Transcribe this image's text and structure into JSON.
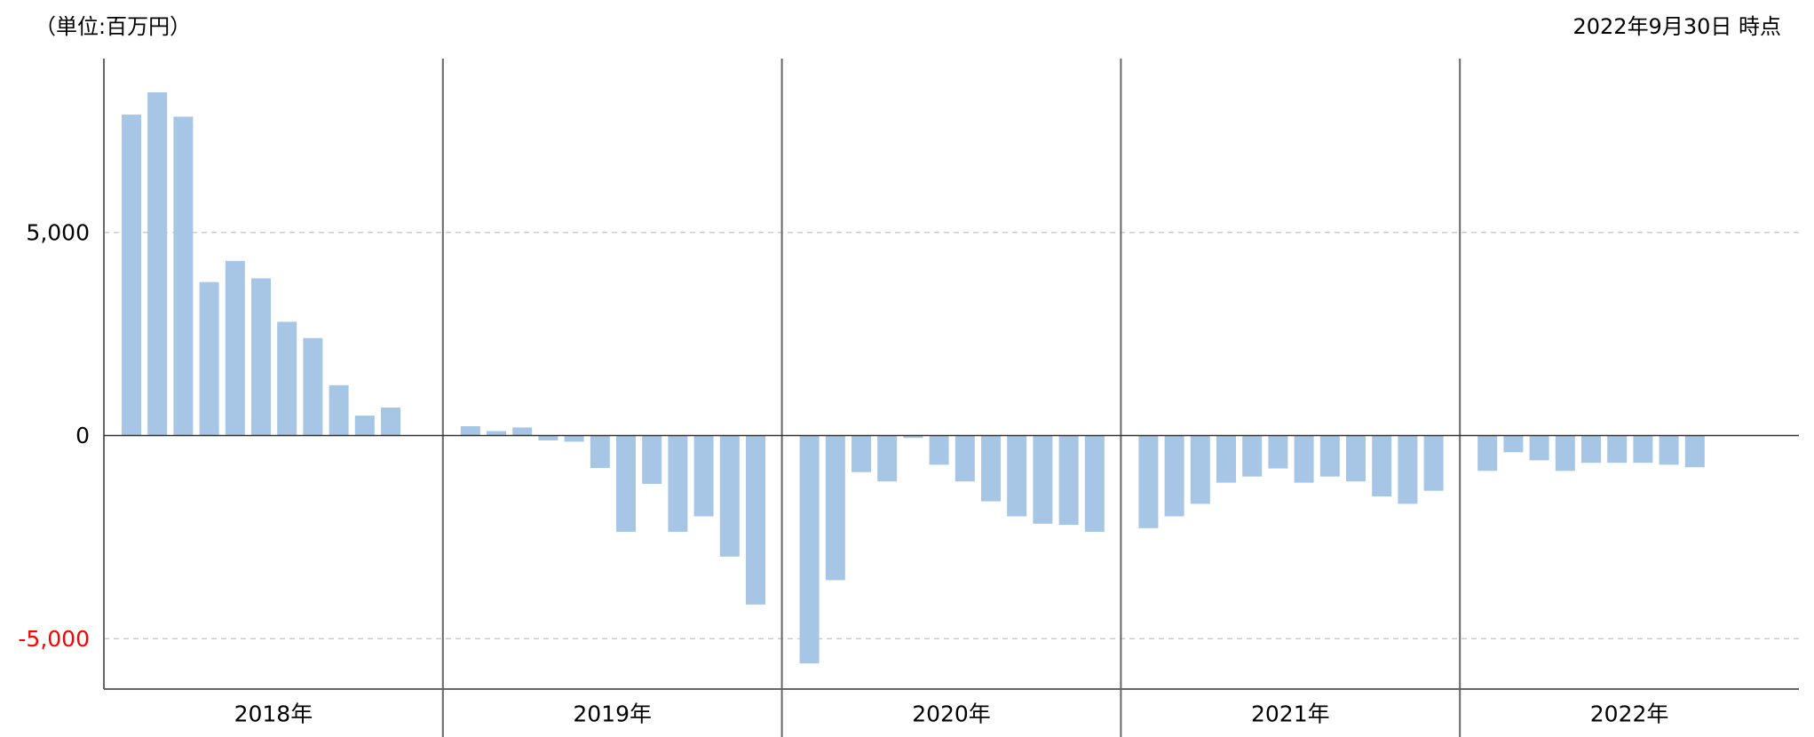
{
  "chart_data": {
    "type": "bar",
    "unit_note": "（単位:百万円）",
    "as_of": "2022年9月30日 時点",
    "ylim": [
      -6240,
      9280
    ],
    "yticks": [
      5000,
      0,
      -5000
    ],
    "ytick_labels": [
      "5,000",
      "0",
      "-5,000"
    ],
    "grid": true,
    "groups": [
      {
        "label": "2018年",
        "values": [
          7900,
          8450,
          7850,
          3780,
          4300,
          3870,
          2800,
          2400,
          1240,
          490,
          690
        ]
      },
      {
        "label": "2019年",
        "values": [
          230,
          110,
          200,
          -120,
          -150,
          -800,
          -2370,
          -1190,
          -2370,
          -1990,
          -2980,
          -4160
        ]
      },
      {
        "label": "2020年",
        "values": [
          -5610,
          -3560,
          -900,
          -1130,
          -60,
          -720,
          -1130,
          -1620,
          -1990,
          -2170,
          -2200,
          -2370
        ]
      },
      {
        "label": "2021年",
        "values": [
          -2280,
          -1990,
          -1680,
          -1160,
          -1010,
          -810,
          -1160,
          -1010,
          -1130,
          -1500,
          -1680,
          -1360
        ]
      },
      {
        "label": "2022年",
        "values": [
          -870,
          -410,
          -610,
          -870,
          -670,
          -670,
          -670,
          -720,
          -780
        ]
      }
    ],
    "colors": {
      "bar": "#a7c5e4",
      "axis": "#666666",
      "zero_line": "#333333",
      "grid": "#c8c8c8",
      "label": "#000000",
      "negative_label": "#ff0000"
    }
  }
}
